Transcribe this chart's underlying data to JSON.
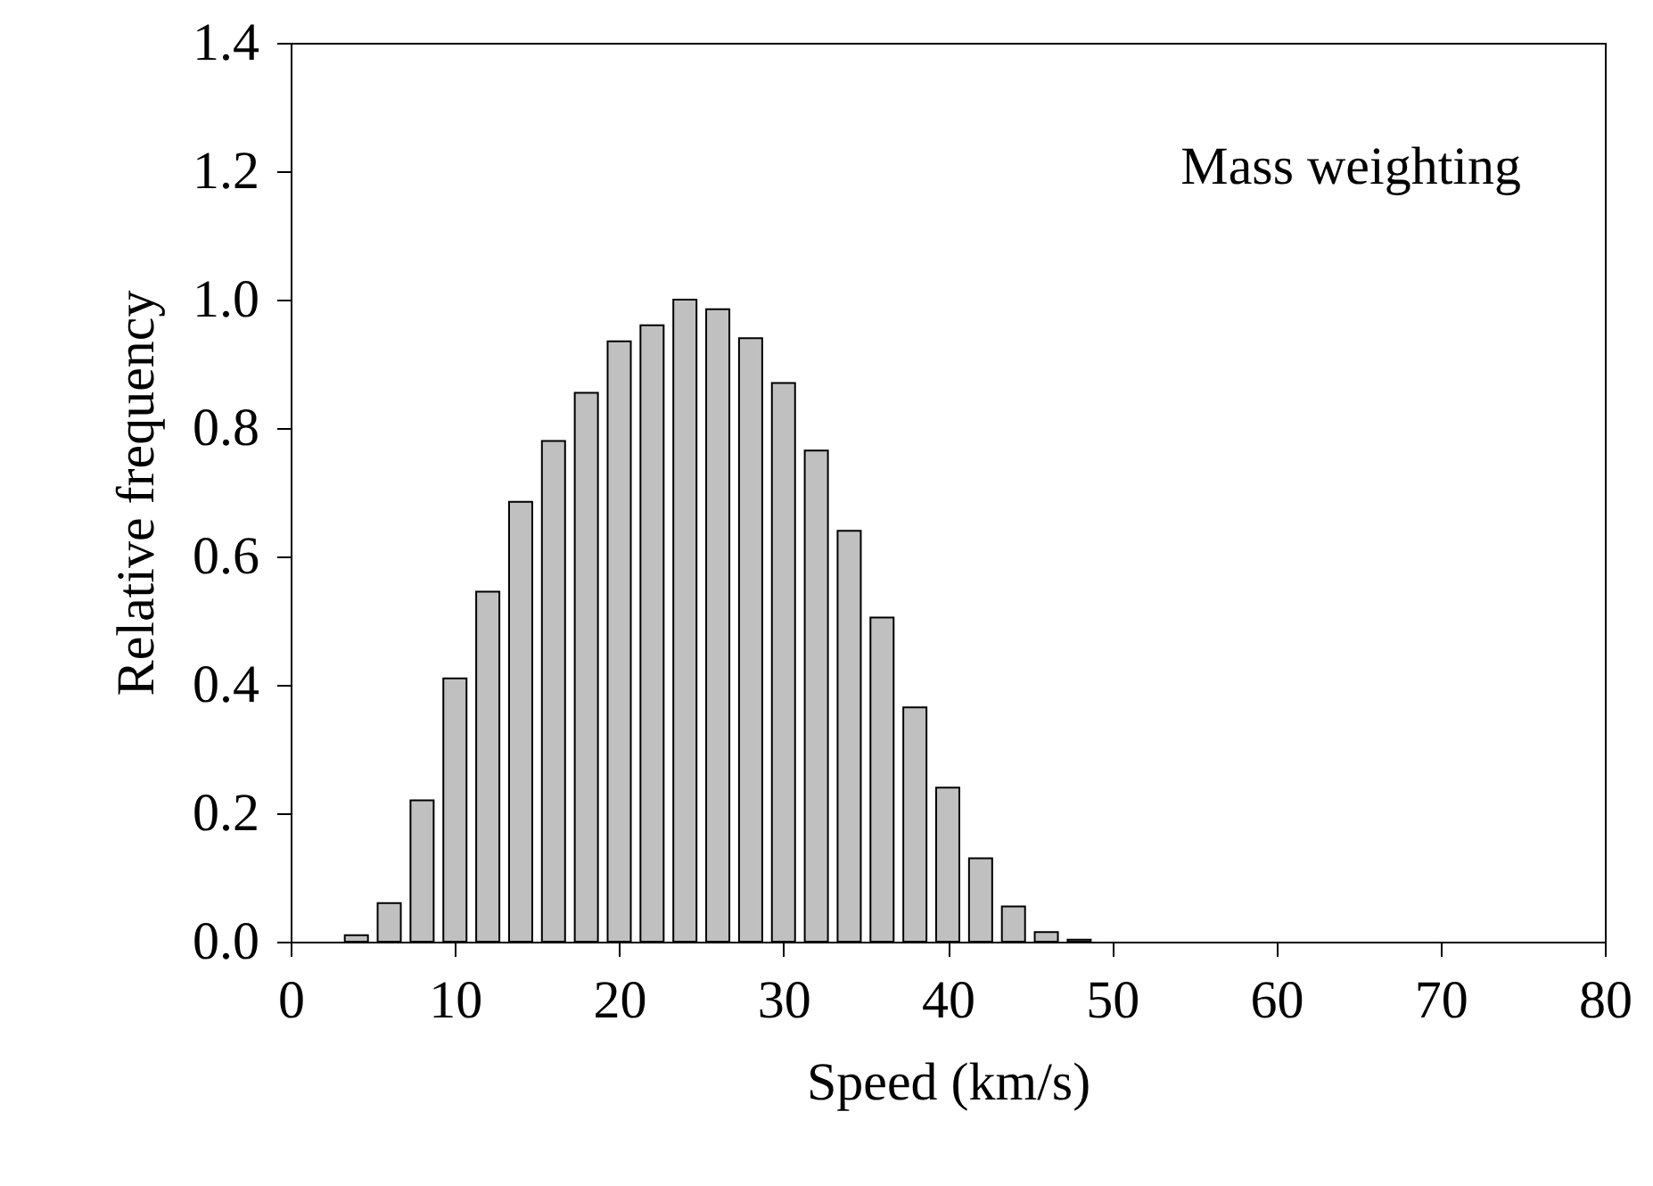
{
  "chart_data": {
    "type": "bar",
    "xlabel": "Speed (km/s)",
    "ylabel": "Relative frequency",
    "annotations": [
      "Mass weighting"
    ],
    "x": [
      4,
      6,
      8,
      10,
      12,
      14,
      16,
      18,
      20,
      22,
      24,
      26,
      28,
      30,
      32,
      34,
      36,
      38,
      40,
      42,
      44,
      46,
      48
    ],
    "values": [
      0.01,
      0.06,
      0.22,
      0.41,
      0.545,
      0.685,
      0.78,
      0.855,
      0.935,
      0.96,
      1.0,
      0.985,
      0.94,
      0.87,
      0.765,
      0.64,
      0.505,
      0.365,
      0.24,
      0.13,
      0.055,
      0.015,
      0.003
    ],
    "color": "#c0c0c0",
    "xlim": [
      0,
      80
    ],
    "xticks": [
      0,
      10,
      20,
      30,
      40,
      50,
      60,
      70,
      80
    ],
    "ylim": [
      0,
      1.4
    ],
    "yticks": [
      {
        "value": 0,
        "label": "0.0"
      },
      {
        "value": 0.2,
        "label": "0.2"
      },
      {
        "value": 0.4,
        "label": "0.4"
      },
      {
        "value": 0.6,
        "label": "0.6"
      },
      {
        "value": 0.8,
        "label": "0.8"
      },
      {
        "value": 1.0,
        "label": "1.0"
      },
      {
        "value": 1.2,
        "label": "1.2"
      },
      {
        "value": 1.4,
        "label": "1.4"
      }
    ],
    "grid": false
  }
}
